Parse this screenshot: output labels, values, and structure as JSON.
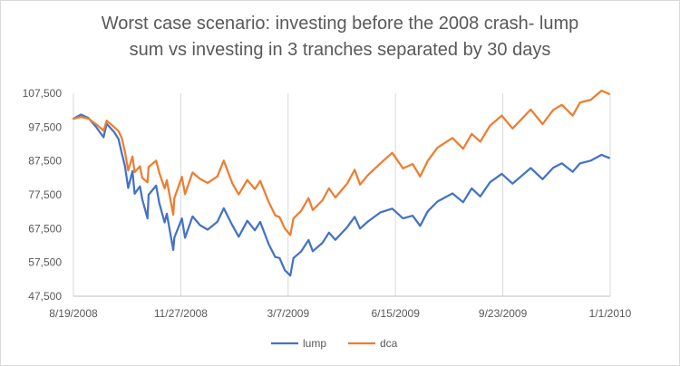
{
  "chart_data": {
    "type": "line",
    "title_lines": [
      "Worst case scenario: investing before the 2008 crash- lump",
      "sum vs investing in 3 tranches separated by 30 days"
    ],
    "xlabel": "",
    "ylabel": "",
    "x_tick_labels": [
      "8/19/2008",
      "11/27/2008",
      "3/7/2009",
      "6/15/2009",
      "9/23/2009",
      "1/1/2010"
    ],
    "y_tick_labels": [
      "47,500",
      "57,500",
      "67,500",
      "77,500",
      "87,500",
      "97,500",
      "107,500"
    ],
    "ylim": [
      47500,
      107500
    ],
    "xlim": [
      "2008-08-19",
      "2010-01-01"
    ],
    "grid": "vertical",
    "legend_position": "bottom",
    "series": [
      {
        "name": "lump",
        "color": "#4472c4",
        "points": [
          [
            "2008-08-19",
            100000
          ],
          [
            "2008-08-26",
            101200
          ],
          [
            "2008-09-02",
            100200
          ],
          [
            "2008-09-09",
            97600
          ],
          [
            "2008-09-16",
            94500
          ],
          [
            "2008-09-19",
            98500
          ],
          [
            "2008-09-26",
            96000
          ],
          [
            "2008-09-30",
            94000
          ],
          [
            "2008-10-03",
            89800
          ],
          [
            "2008-10-06",
            86000
          ],
          [
            "2008-10-09",
            79500
          ],
          [
            "2008-10-13",
            84500
          ],
          [
            "2008-10-15",
            77800
          ],
          [
            "2008-10-20",
            80000
          ],
          [
            "2008-10-22",
            76300
          ],
          [
            "2008-10-27",
            70500
          ],
          [
            "2008-10-28",
            77500
          ],
          [
            "2008-11-04",
            80200
          ],
          [
            "2008-11-07",
            75000
          ],
          [
            "2008-11-12",
            69300
          ],
          [
            "2008-11-14",
            71900
          ],
          [
            "2008-11-20",
            61200
          ],
          [
            "2008-11-21",
            64800
          ],
          [
            "2008-11-28",
            70500
          ],
          [
            "2008-12-01",
            64800
          ],
          [
            "2008-12-08",
            71100
          ],
          [
            "2008-12-15",
            68500
          ],
          [
            "2008-12-22",
            67200
          ],
          [
            "2008-12-31",
            69500
          ],
          [
            "2009-01-06",
            73500
          ],
          [
            "2009-01-14",
            68500
          ],
          [
            "2009-01-20",
            65100
          ],
          [
            "2009-01-28",
            69800
          ],
          [
            "2009-02-04",
            67000
          ],
          [
            "2009-02-09",
            69500
          ],
          [
            "2009-02-17",
            62800
          ],
          [
            "2009-02-23",
            59100
          ],
          [
            "2009-02-27",
            58800
          ],
          [
            "2009-03-04",
            55200
          ],
          [
            "2009-03-09",
            53600
          ],
          [
            "2009-03-12",
            58800
          ],
          [
            "2009-03-19",
            60700
          ],
          [
            "2009-03-26",
            64100
          ],
          [
            "2009-03-30",
            60800
          ],
          [
            "2009-04-08",
            63300
          ],
          [
            "2009-04-14",
            66300
          ],
          [
            "2009-04-20",
            64200
          ],
          [
            "2009-05-01",
            67900
          ],
          [
            "2009-05-08",
            71000
          ],
          [
            "2009-05-13",
            67500
          ],
          [
            "2009-05-20",
            69500
          ],
          [
            "2009-06-01",
            72300
          ],
          [
            "2009-06-12",
            73400
          ],
          [
            "2009-06-22",
            70500
          ],
          [
            "2009-07-01",
            71300
          ],
          [
            "2009-07-08",
            68300
          ],
          [
            "2009-07-15",
            72600
          ],
          [
            "2009-07-24",
            75500
          ],
          [
            "2009-08-07",
            77900
          ],
          [
            "2009-08-17",
            75300
          ],
          [
            "2009-08-25",
            79400
          ],
          [
            "2009-09-02",
            77000
          ],
          [
            "2009-09-11",
            81200
          ],
          [
            "2009-09-22",
            83700
          ],
          [
            "2009-10-02",
            80800
          ],
          [
            "2009-10-19",
            85400
          ],
          [
            "2009-10-30",
            82100
          ],
          [
            "2009-11-09",
            85500
          ],
          [
            "2009-11-17",
            86800
          ],
          [
            "2009-11-27",
            84300
          ],
          [
            "2009-12-04",
            86800
          ],
          [
            "2009-12-14",
            87600
          ],
          [
            "2009-12-24",
            89300
          ],
          [
            "2009-12-31",
            88400
          ]
        ]
      },
      {
        "name": "dca",
        "color": "#ed7d31",
        "points": [
          [
            "2008-08-19",
            100000
          ],
          [
            "2008-08-26",
            100500
          ],
          [
            "2008-09-02",
            100000
          ],
          [
            "2008-09-09",
            98400
          ],
          [
            "2008-09-16",
            96500
          ],
          [
            "2008-09-19",
            99400
          ],
          [
            "2008-09-26",
            97500
          ],
          [
            "2008-09-30",
            96300
          ],
          [
            "2008-10-03",
            94300
          ],
          [
            "2008-10-06",
            90200
          ],
          [
            "2008-10-09",
            84700
          ],
          [
            "2008-10-13",
            88800
          ],
          [
            "2008-10-15",
            84200
          ],
          [
            "2008-10-20",
            85900
          ],
          [
            "2008-10-22",
            82500
          ],
          [
            "2008-10-27",
            81200
          ],
          [
            "2008-10-28",
            85700
          ],
          [
            "2008-11-04",
            87600
          ],
          [
            "2008-11-07",
            84000
          ],
          [
            "2008-11-12",
            79400
          ],
          [
            "2008-11-14",
            81800
          ],
          [
            "2008-11-20",
            71600
          ],
          [
            "2008-11-21",
            76500
          ],
          [
            "2008-11-28",
            82800
          ],
          [
            "2008-12-01",
            77700
          ],
          [
            "2008-12-08",
            84100
          ],
          [
            "2008-12-15",
            82200
          ],
          [
            "2008-12-22",
            81000
          ],
          [
            "2008-12-31",
            82900
          ],
          [
            "2009-01-06",
            87600
          ],
          [
            "2009-01-14",
            80900
          ],
          [
            "2009-01-20",
            77600
          ],
          [
            "2009-01-28",
            81900
          ],
          [
            "2009-02-04",
            79200
          ],
          [
            "2009-02-09",
            81600
          ],
          [
            "2009-02-17",
            75300
          ],
          [
            "2009-02-23",
            71400
          ],
          [
            "2009-02-27",
            70900
          ],
          [
            "2009-03-04",
            67500
          ],
          [
            "2009-03-09",
            65600
          ],
          [
            "2009-03-12",
            70500
          ],
          [
            "2009-03-19",
            72700
          ],
          [
            "2009-03-26",
            76500
          ],
          [
            "2009-03-30",
            73000
          ],
          [
            "2009-04-08",
            75900
          ],
          [
            "2009-04-14",
            79400
          ],
          [
            "2009-04-20",
            76700
          ],
          [
            "2009-05-01",
            80800
          ],
          [
            "2009-05-08",
            84900
          ],
          [
            "2009-05-13",
            80500
          ],
          [
            "2009-05-20",
            83200
          ],
          [
            "2009-06-01",
            86800
          ],
          [
            "2009-06-12",
            89900
          ],
          [
            "2009-06-22",
            85300
          ],
          [
            "2009-07-01",
            86600
          ],
          [
            "2009-07-08",
            82900
          ],
          [
            "2009-07-15",
            87500
          ],
          [
            "2009-07-24",
            91400
          ],
          [
            "2009-08-07",
            94300
          ],
          [
            "2009-08-17",
            91100
          ],
          [
            "2009-08-25",
            95500
          ],
          [
            "2009-09-02",
            93200
          ],
          [
            "2009-09-11",
            97900
          ],
          [
            "2009-09-22",
            100900
          ],
          [
            "2009-10-02",
            97100
          ],
          [
            "2009-10-19",
            102700
          ],
          [
            "2009-10-30",
            98400
          ],
          [
            "2009-11-09",
            102600
          ],
          [
            "2009-11-17",
            104100
          ],
          [
            "2009-11-27",
            100900
          ],
          [
            "2009-12-04",
            104800
          ],
          [
            "2009-12-14",
            105600
          ],
          [
            "2009-12-24",
            108300
          ],
          [
            "2009-12-31",
            107300
          ]
        ]
      }
    ]
  }
}
